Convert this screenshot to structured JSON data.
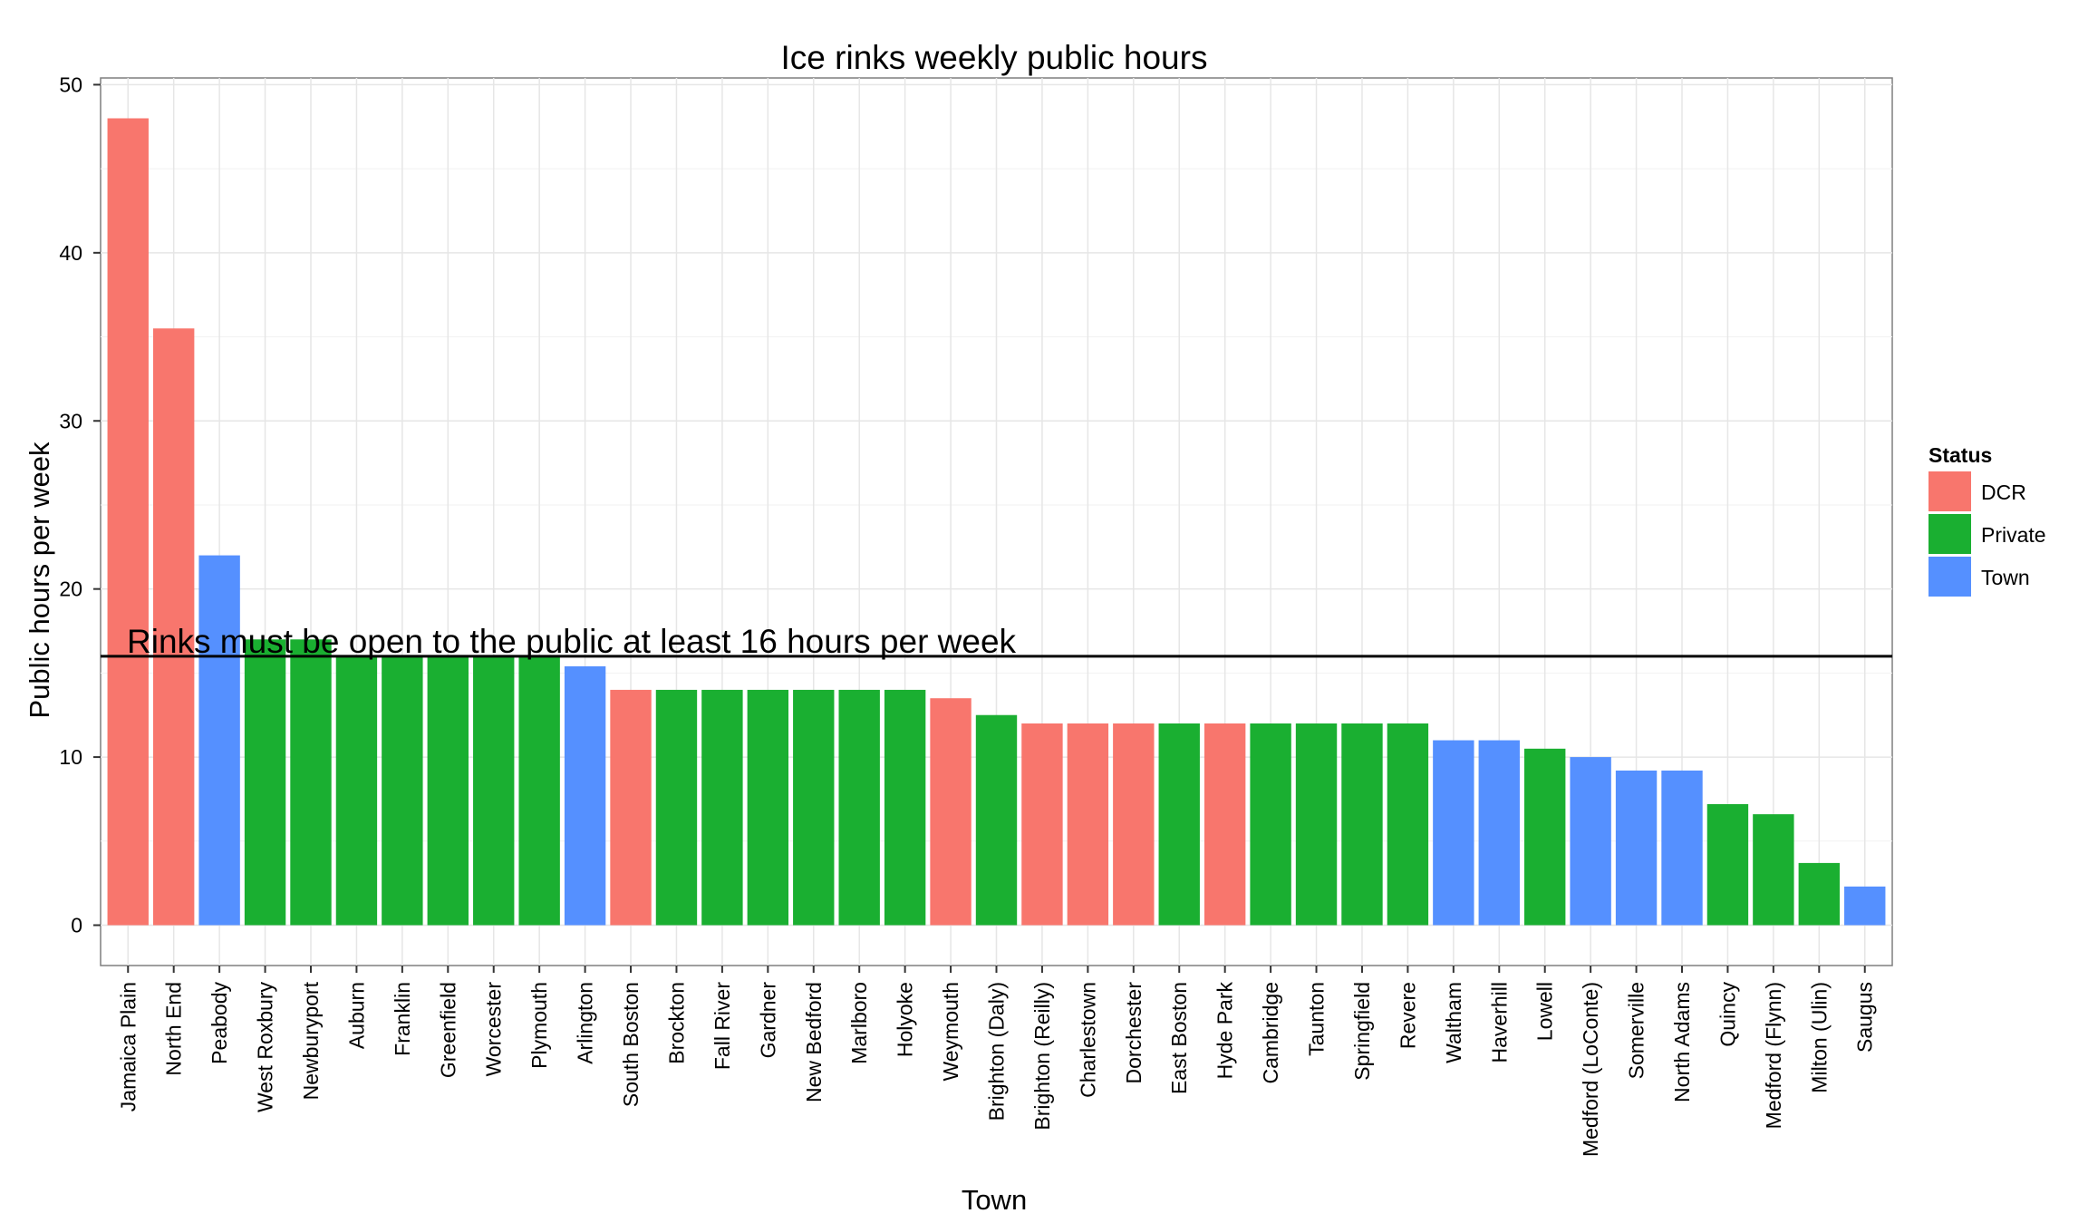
{
  "chart_data": {
    "type": "bar",
    "title": "Ice rinks weekly public hours",
    "xlabel": "Town",
    "ylabel": "Public hours per week",
    "ylim": [
      -2.4,
      50.4
    ],
    "yticks": [
      0,
      10,
      20,
      30,
      40,
      50
    ],
    "grid": true,
    "legend": {
      "title": "Status",
      "position": "right",
      "entries": [
        {
          "name": "DCR",
          "color": "#F8766D"
        },
        {
          "name": "Private",
          "color": "#1aaf31"
        },
        {
          "name": "Town",
          "color": "#5590ff"
        }
      ]
    },
    "reference_line": {
      "y": 16,
      "label": "Rinks must be open to the public at least 16 hours per week"
    },
    "categories": [
      "Jamaica Plain",
      "North End",
      "Peabody",
      "West Roxbury",
      "Newburyport",
      "Auburn",
      "Franklin",
      "Greenfield",
      "Worcester",
      "Plymouth",
      "Arlington",
      "South Boston",
      "Brockton",
      "Fall River",
      "Gardner",
      "New Bedford",
      "Marlboro",
      "Holyoke",
      "Weymouth",
      "Brighton (Daly)",
      "Brighton (Reilly)",
      "Charlestown",
      "Dorchester",
      "East Boston",
      "Hyde Park",
      "Cambridge",
      "Taunton",
      "Springfield",
      "Revere",
      "Waltham",
      "Haverhill",
      "Lowell",
      "Medford (LoConte)",
      "Somerville",
      "North Adams",
      "Quincy",
      "Medford (Flynn)",
      "Milton (Ulin)",
      "Saugus"
    ],
    "values": [
      48,
      35.5,
      22,
      17,
      17,
      16,
      16,
      16,
      16,
      16,
      15.4,
      14,
      14,
      14,
      14,
      14,
      14,
      14,
      13.5,
      12.5,
      12,
      12,
      12,
      12,
      12,
      12,
      12,
      12,
      12,
      11,
      11,
      10.5,
      10,
      9.2,
      9.2,
      7.2,
      6.6,
      3.7,
      2.3
    ],
    "status": [
      "DCR",
      "DCR",
      "Town",
      "Private",
      "Private",
      "Private",
      "Private",
      "Private",
      "Private",
      "Private",
      "Town",
      "DCR",
      "Private",
      "Private",
      "Private",
      "Private",
      "Private",
      "Private",
      "DCR",
      "Private",
      "DCR",
      "DCR",
      "DCR",
      "Private",
      "DCR",
      "Private",
      "Private",
      "Private",
      "Private",
      "Town",
      "Town",
      "Private",
      "Town",
      "Town",
      "Town",
      "Private",
      "Private",
      "Private",
      "Town"
    ]
  }
}
